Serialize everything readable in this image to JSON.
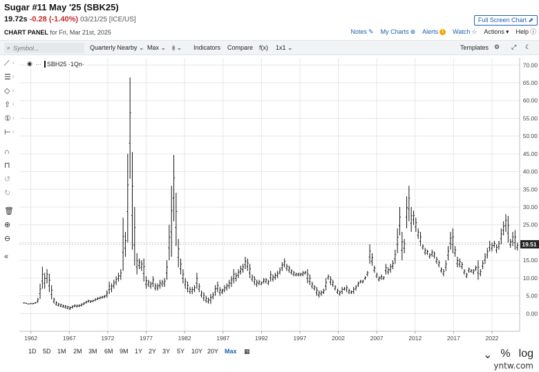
{
  "header": {
    "title": "Sugar #11 May '25 (SBK25)",
    "last": "19.72s",
    "change": "-0.28 (-1.40%)",
    "stamp": "03/21/25 [ICE/US]",
    "fullscreen_label": "Full Screen Chart ⬈"
  },
  "panel": {
    "label": "CHART PANEL",
    "date": "for Fri, Mar 21st, 2025",
    "actions": {
      "notes": "Notes",
      "mycharts": "My Charts",
      "alerts": "Alerts",
      "watch": "Watch",
      "actions": "Actions",
      "help": "Help"
    }
  },
  "toolbar": {
    "symbol_placeholder": "Symbol...",
    "aggregation": "Quarterly Nearby",
    "period": "Max",
    "bar_type_glyph": "⫵",
    "indicators": "Indicators",
    "compare": "Compare",
    "fx": "f(x)",
    "layout": "1x1",
    "templates": "Templates"
  },
  "legend": {
    "dots": "···",
    "series": "SBH25 ·1Qn·"
  },
  "icons": {
    "left": [
      "line-tool-icon",
      "fib-tool-icon",
      "shape-tool-icon",
      "arrow-tool-icon",
      "number-tool-icon",
      "measure-tool-icon",
      "magnet-icon",
      "lock-icon",
      "undo-icon",
      "redo-icon",
      "trash-icon",
      "zoom-in-icon",
      "zoom-out-icon",
      "collapse-icon"
    ]
  },
  "ranges": [
    "1D",
    "5D",
    "1M",
    "2M",
    "3M",
    "6M",
    "9M",
    "1Y",
    "2Y",
    "3Y",
    "5Y",
    "10Y",
    "20Y",
    "Max"
  ],
  "active_range": "Max",
  "bottom_controls": {
    "pct": "%",
    "log": "log"
  },
  "brand": "yntw.com",
  "colors": {
    "accent": "#1a5fb4",
    "down": "#c62828",
    "price_tag": "#222222",
    "bar": "#111111"
  },
  "chart_data": {
    "type": "bar",
    "style": "ohlc-quarterly",
    "series_name": "SBH25 ·1Qn·",
    "x_ticks": [
      "1962",
      "1967",
      "1972",
      "1977",
      "1982",
      "1987",
      "1992",
      "1997",
      "2002",
      "2007",
      "2012",
      "2017",
      "2022"
    ],
    "y_ticks": [
      "0.00",
      "5.00",
      "10.00",
      "15.00",
      "20.00",
      "25.00",
      "30.00",
      "35.00",
      "40.00",
      "45.00",
      "50.00",
      "55.00",
      "60.00",
      "65.00",
      "70.00"
    ],
    "ylim": [
      -5,
      72
    ],
    "xlim": [
      1960.5,
      2025.6
    ],
    "last_price_label": "19.51",
    "last_price": 19.51,
    "grid": true,
    "bars": [
      [
        1961.1,
        3.1,
        2.9
      ],
      [
        1961.4,
        3.0,
        2.8
      ],
      [
        1961.7,
        2.8,
        2.6
      ],
      [
        1962.0,
        2.9,
        2.7
      ],
      [
        1962.3,
        3.0,
        2.6
      ],
      [
        1962.6,
        3.2,
        2.8
      ],
      [
        1962.9,
        4.4,
        3.0
      ],
      [
        1963.2,
        8.4,
        4.1
      ],
      [
        1963.5,
        13.2,
        7.0
      ],
      [
        1963.8,
        11.5,
        7.0
      ],
      [
        1964.1,
        12.5,
        8.5
      ],
      [
        1964.4,
        11.2,
        6.0
      ],
      [
        1964.7,
        8.0,
        4.0
      ],
      [
        1965.0,
        4.5,
        2.8
      ],
      [
        1965.3,
        3.5,
        2.2
      ],
      [
        1965.6,
        3.0,
        2.0
      ],
      [
        1965.9,
        2.8,
        1.8
      ],
      [
        1966.2,
        2.5,
        1.6
      ],
      [
        1966.5,
        2.4,
        1.4
      ],
      [
        1966.8,
        2.2,
        1.2
      ],
      [
        1967.1,
        2.0,
        1.0
      ],
      [
        1967.4,
        2.3,
        1.4
      ],
      [
        1967.7,
        2.6,
        1.8
      ],
      [
        1968.0,
        2.5,
        1.7
      ],
      [
        1968.3,
        2.6,
        1.8
      ],
      [
        1968.6,
        2.9,
        2.0
      ],
      [
        1968.9,
        3.2,
        2.4
      ],
      [
        1969.2,
        3.6,
        2.8
      ],
      [
        1969.5,
        3.9,
        3.1
      ],
      [
        1969.8,
        3.8,
        3.0
      ],
      [
        1970.1,
        3.9,
        3.2
      ],
      [
        1970.4,
        4.3,
        3.5
      ],
      [
        1970.7,
        4.6,
        3.8
      ],
      [
        1971.0,
        4.8,
        4.0
      ],
      [
        1971.3,
        5.0,
        4.2
      ],
      [
        1971.6,
        5.2,
        4.4
      ],
      [
        1971.9,
        6.5,
        4.5
      ],
      [
        1972.2,
        9.0,
        5.5
      ],
      [
        1972.5,
        8.5,
        6.0
      ],
      [
        1972.8,
        9.5,
        7.0
      ],
      [
        1973.1,
        10.5,
        8.0
      ],
      [
        1973.4,
        11.5,
        9.0
      ],
      [
        1973.7,
        12.5,
        9.5
      ],
      [
        1974.0,
        27.0,
        12.0
      ],
      [
        1974.3,
        23.0,
        16.0
      ],
      [
        1974.6,
        45.0,
        20.0
      ],
      [
        1974.9,
        66.5,
        38.0
      ],
      [
        1975.2,
        45.5,
        18.0
      ],
      [
        1975.5,
        30.0,
        13.5
      ],
      [
        1975.8,
        17.0,
        11.0
      ],
      [
        1976.1,
        15.5,
        12.5
      ],
      [
        1976.4,
        15.0,
        12.0
      ],
      [
        1976.7,
        15.5,
        9.0
      ],
      [
        1977.0,
        10.5,
        7.0
      ],
      [
        1977.3,
        9.5,
        7.5
      ],
      [
        1977.6,
        9.0,
        7.0
      ],
      [
        1977.9,
        10.5,
        7.5
      ],
      [
        1978.2,
        8.5,
        6.5
      ],
      [
        1978.5,
        8.5,
        6.5
      ],
      [
        1978.8,
        9.5,
        7.0
      ],
      [
        1979.1,
        9.5,
        7.5
      ],
      [
        1979.4,
        10.0,
        7.5
      ],
      [
        1979.7,
        15.0,
        9.5
      ],
      [
        1980.0,
        25.0,
        15.0
      ],
      [
        1980.3,
        36.0,
        16.0
      ],
      [
        1980.6,
        44.7,
        26.0
      ],
      [
        1980.9,
        34.0,
        19.0
      ],
      [
        1981.2,
        21.0,
        13.0
      ],
      [
        1981.5,
        15.5,
        11.0
      ],
      [
        1981.8,
        12.5,
        8.5
      ],
      [
        1982.1,
        10.0,
        7.0
      ],
      [
        1982.4,
        9.0,
        6.0
      ],
      [
        1982.7,
        7.5,
        5.5
      ],
      [
        1983.0,
        7.5,
        5.5
      ],
      [
        1983.3,
        8.0,
        6.0
      ],
      [
        1983.6,
        11.5,
        7.0
      ],
      [
        1983.9,
        8.5,
        6.0
      ],
      [
        1984.2,
        6.5,
        4.5
      ],
      [
        1984.5,
        6.0,
        3.5
      ],
      [
        1984.8,
        5.0,
        3.0
      ],
      [
        1985.1,
        4.5,
        2.8
      ],
      [
        1985.4,
        5.5,
        2.7
      ],
      [
        1985.7,
        6.0,
        4.0
      ],
      [
        1986.0,
        8.0,
        5.0
      ],
      [
        1986.3,
        9.0,
        6.0
      ],
      [
        1986.6,
        7.5,
        5.0
      ],
      [
        1986.9,
        7.0,
        5.5
      ],
      [
        1987.2,
        8.0,
        6.0
      ],
      [
        1987.5,
        8.5,
        6.5
      ],
      [
        1987.8,
        9.5,
        7.0
      ],
      [
        1988.1,
        10.5,
        7.5
      ],
      [
        1988.4,
        12.5,
        8.5
      ],
      [
        1988.7,
        11.5,
        9.0
      ],
      [
        1989.0,
        12.5,
        10.0
      ],
      [
        1989.3,
        13.5,
        11.0
      ],
      [
        1989.6,
        14.0,
        11.5
      ],
      [
        1989.9,
        16.0,
        12.5
      ],
      [
        1990.2,
        15.5,
        12.0
      ],
      [
        1990.5,
        14.0,
        10.0
      ],
      [
        1990.8,
        11.0,
        9.0
      ],
      [
        1991.1,
        10.5,
        8.0
      ],
      [
        1991.4,
        9.5,
        7.5
      ],
      [
        1991.7,
        9.5,
        8.0
      ],
      [
        1992.0,
        9.0,
        8.0
      ],
      [
        1992.3,
        10.0,
        8.5
      ],
      [
        1992.6,
        10.0,
        8.5
      ],
      [
        1992.9,
        9.5,
        8.0
      ],
      [
        1993.2,
        12.0,
        9.0
      ],
      [
        1993.5,
        11.0,
        9.0
      ],
      [
        1993.8,
        11.5,
        9.5
      ],
      [
        1994.1,
        12.0,
        10.0
      ],
      [
        1994.4,
        13.0,
        11.0
      ],
      [
        1994.7,
        14.5,
        12.0
      ],
      [
        1995.0,
        15.5,
        13.0
      ],
      [
        1995.3,
        14.0,
        12.0
      ],
      [
        1995.6,
        13.5,
        11.5
      ],
      [
        1995.9,
        12.5,
        11.0
      ],
      [
        1996.2,
        12.0,
        10.5
      ],
      [
        1996.5,
        11.5,
        10.5
      ],
      [
        1996.8,
        11.5,
        10.5
      ],
      [
        1997.1,
        11.5,
        10.5
      ],
      [
        1997.4,
        12.0,
        10.5
      ],
      [
        1997.7,
        12.0,
        11.0
      ],
      [
        1998.0,
        12.5,
        8.5
      ],
      [
        1998.3,
        11.0,
        8.0
      ],
      [
        1998.6,
        9.0,
        7.0
      ],
      [
        1998.9,
        8.0,
        6.5
      ],
      [
        1999.2,
        7.5,
        5.0
      ],
      [
        1999.5,
        6.5,
        4.5
      ],
      [
        1999.8,
        6.5,
        5.0
      ],
      [
        2000.1,
        7.0,
        5.5
      ],
      [
        2000.4,
        10.0,
        6.5
      ],
      [
        2000.7,
        11.0,
        9.5
      ],
      [
        2001.0,
        10.5,
        8.0
      ],
      [
        2001.3,
        9.5,
        7.5
      ],
      [
        2001.6,
        8.0,
        6.5
      ],
      [
        2001.9,
        7.0,
        5.5
      ],
      [
        2002.2,
        6.5,
        5.0
      ],
      [
        2002.5,
        7.5,
        5.5
      ],
      [
        2002.8,
        7.5,
        6.5
      ],
      [
        2003.1,
        8.0,
        6.0
      ],
      [
        2003.4,
        7.0,
        5.5
      ],
      [
        2003.7,
        6.5,
        5.5
      ],
      [
        2004.0,
        7.5,
        5.5
      ],
      [
        2004.3,
        8.0,
        6.5
      ],
      [
        2004.6,
        9.0,
        7.5
      ],
      [
        2004.9,
        9.5,
        8.5
      ],
      [
        2005.2,
        9.5,
        8.5
      ],
      [
        2005.5,
        10.5,
        9.5
      ],
      [
        2005.8,
        12.0,
        10.5
      ],
      [
        2006.1,
        19.5,
        14.0
      ],
      [
        2006.4,
        17.0,
        13.5
      ],
      [
        2006.7,
        13.5,
        11.5
      ],
      [
        2007.0,
        11.5,
        10.0
      ],
      [
        2007.3,
        10.5,
        9.0
      ],
      [
        2007.6,
        11.0,
        9.5
      ],
      [
        2007.9,
        10.5,
        9.5
      ],
      [
        2008.2,
        14.0,
        11.0
      ],
      [
        2008.5,
        13.0,
        11.0
      ],
      [
        2008.8,
        14.0,
        11.5
      ],
      [
        2009.1,
        15.0,
        12.5
      ],
      [
        2009.4,
        18.0,
        14.0
      ],
      [
        2009.7,
        24.0,
        17.0
      ],
      [
        2010.0,
        30.0,
        22.0
      ],
      [
        2010.3,
        23.0,
        15.0
      ],
      [
        2010.6,
        21.0,
        17.0
      ],
      [
        2010.9,
        33.0,
        24.0
      ],
      [
        2011.2,
        36.0,
        26.0
      ],
      [
        2011.5,
        30.0,
        23.0
      ],
      [
        2011.8,
        29.0,
        25.0
      ],
      [
        2012.1,
        27.0,
        23.0
      ],
      [
        2012.4,
        24.0,
        21.0
      ],
      [
        2012.7,
        23.0,
        19.0
      ],
      [
        2013.0,
        19.5,
        18.0
      ],
      [
        2013.3,
        18.5,
        16.5
      ],
      [
        2013.6,
        18.0,
        16.5
      ],
      [
        2013.9,
        17.0,
        15.5
      ],
      [
        2014.2,
        18.0,
        16.0
      ],
      [
        2014.5,
        17.5,
        15.5
      ],
      [
        2014.8,
        16.0,
        14.0
      ],
      [
        2015.1,
        15.0,
        13.0
      ],
      [
        2015.4,
        13.0,
        11.5
      ],
      [
        2015.7,
        12.5,
        10.5
      ],
      [
        2016.0,
        15.0,
        12.0
      ],
      [
        2016.3,
        19.0,
        15.0
      ],
      [
        2016.6,
        23.0,
        18.0
      ],
      [
        2016.9,
        24.0,
        17.0
      ],
      [
        2017.2,
        19.0,
        16.0
      ],
      [
        2017.5,
        16.0,
        13.0
      ],
      [
        2017.8,
        15.5,
        13.0
      ],
      [
        2018.1,
        14.5,
        12.5
      ],
      [
        2018.4,
        12.5,
        11.0
      ],
      [
        2018.7,
        11.5,
        10.0
      ],
      [
        2019.0,
        13.0,
        11.5
      ],
      [
        2019.3,
        12.5,
        11.5
      ],
      [
        2019.6,
        12.5,
        11.0
      ],
      [
        2019.9,
        13.5,
        12.0
      ],
      [
        2020.2,
        15.0,
        9.5
      ],
      [
        2020.5,
        12.5,
        10.5
      ],
      [
        2020.8,
        15.0,
        12.5
      ],
      [
        2021.1,
        17.0,
        14.0
      ],
      [
        2021.4,
        18.5,
        15.5
      ],
      [
        2021.7,
        20.5,
        17.5
      ],
      [
        2022.0,
        20.0,
        17.5
      ],
      [
        2022.3,
        20.5,
        18.5
      ],
      [
        2022.6,
        19.5,
        17.0
      ],
      [
        2022.9,
        20.5,
        18.0
      ],
      [
        2023.2,
        24.0,
        19.5
      ],
      [
        2023.5,
        26.0,
        22.0
      ],
      [
        2023.8,
        28.0,
        23.0
      ],
      [
        2024.1,
        27.5,
        20.0
      ],
      [
        2024.4,
        21.0,
        18.5
      ],
      [
        2024.7,
        23.0,
        19.0
      ],
      [
        2025.0,
        23.5,
        18.0
      ],
      [
        2025.3,
        20.0,
        17.8
      ]
    ]
  }
}
